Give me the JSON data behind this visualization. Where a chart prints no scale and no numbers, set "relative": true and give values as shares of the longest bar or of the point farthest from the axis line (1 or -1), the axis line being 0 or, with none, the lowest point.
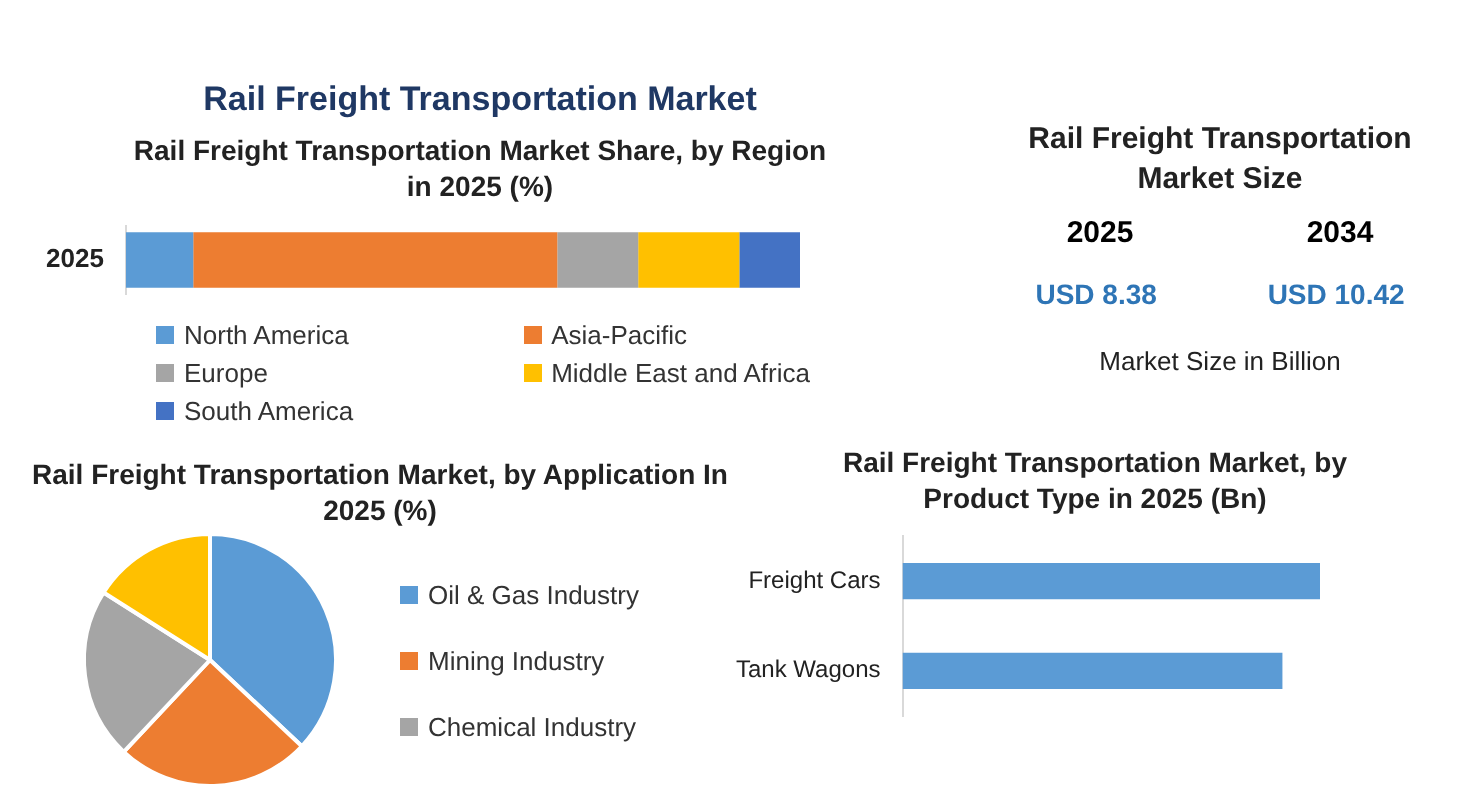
{
  "chart_data": [
    {
      "type": "bar",
      "title": "Rail Freight Transportation Market",
      "subtitle": "Rail Freight Transportation Market Share, by Region in 2025 (%)",
      "orientation": "horizontal",
      "stacked": true,
      "relative": true,
      "legend": "bottom",
      "categories": [
        "2025"
      ],
      "series": [
        {
          "name": "North America",
          "color": "#5b9bd5",
          "values": [
            0.1
          ]
        },
        {
          "name": "Asia-Pacific",
          "color": "#ed7d31",
          "values": [
            0.54
          ]
        },
        {
          "name": "Europe",
          "color": "#a5a5a5",
          "values": [
            0.12
          ]
        },
        {
          "name": "Middle East and Africa",
          "color": "#ffc000",
          "values": [
            0.15
          ]
        },
        {
          "name": "South America",
          "color": "#4472c4",
          "values": [
            0.09
          ]
        }
      ]
    },
    {
      "type": "other",
      "title": "Rail Freight Transportation Market Size",
      "categories": [
        "2025",
        "2034"
      ],
      "values": [
        8.38,
        10.42
      ],
      "value_labels": [
        "USD 8.38",
        "USD 10.42"
      ],
      "annotations": [
        "Market Size in Billion"
      ]
    },
    {
      "type": "pie",
      "title": "Rail Freight Transportation Market, by Application In 2025 (%)",
      "legend": "right",
      "categories": [
        "Oil & Gas Industry",
        "Mining Industry",
        "Chemical Industry",
        null
      ],
      "values": [
        37,
        25,
        22,
        16
      ],
      "colors": [
        "#5b9bd5",
        "#ed7d31",
        "#a5a5a5",
        "#ffc000"
      ]
    },
    {
      "type": "bar",
      "title": "Rail Freight Transportation Market, by Product Type in 2025 (Bn)",
      "orientation": "horizontal",
      "relative": true,
      "categories": [
        "Freight Cars",
        "Tank Wagons"
      ],
      "values": [
        1,
        0.91
      ],
      "color": "#5b9bd5"
    }
  ]
}
